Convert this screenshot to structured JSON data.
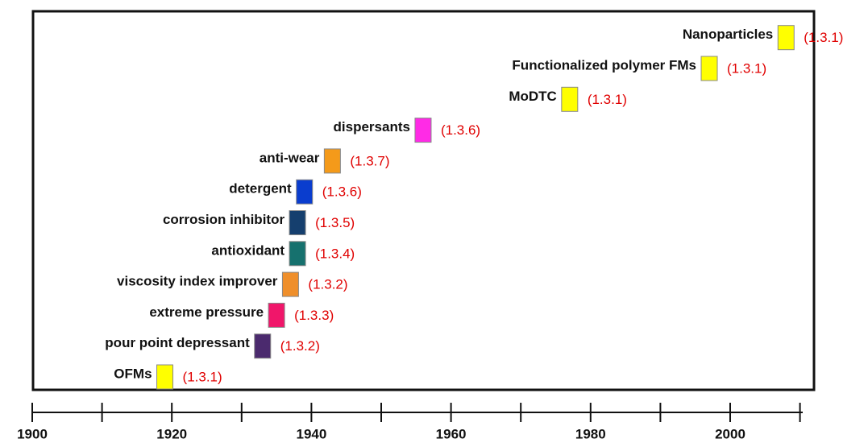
{
  "chart_data": {
    "type": "timeline",
    "categories": [
      "OFMs",
      "pour point depressant",
      "extreme pressure",
      "viscosity index improver",
      "antioxidant",
      "corrosion inhibitor",
      "detergent",
      "anti-wear",
      "dispersants",
      "MoDTC",
      "Functionalized polymer FMs",
      "Nanoparticles"
    ],
    "values": [
      1919,
      1933,
      1935,
      1937,
      1938,
      1938,
      1939,
      1943,
      1956,
      1977,
      1997,
      2008
    ],
    "refs": [
      "(1.3.1)",
      "(1.3.2)",
      "(1.3.3)",
      "(1.3.2)",
      "(1.3.4)",
      "(1.3.5)",
      "(1.3.6)",
      "(1.3.7)",
      "(1.3.6)",
      "(1.3.1)",
      "(1.3.1)",
      "(1.3.1)"
    ],
    "colors": [
      "#ffff00",
      "#4b2a6e",
      "#f0166a",
      "#ef8f2b",
      "#16716e",
      "#153f6e",
      "#0a3dce",
      "#f49a1a",
      "#ff2be6",
      "#ffff00",
      "#ffff00",
      "#ffff00"
    ],
    "xlim": [
      1900,
      2011
    ],
    "xticks": [
      1900,
      1920,
      1940,
      1960,
      1980,
      2000
    ],
    "xminor_ticks": [
      1910,
      1930,
      1950,
      1970,
      1990,
      2010
    ]
  }
}
